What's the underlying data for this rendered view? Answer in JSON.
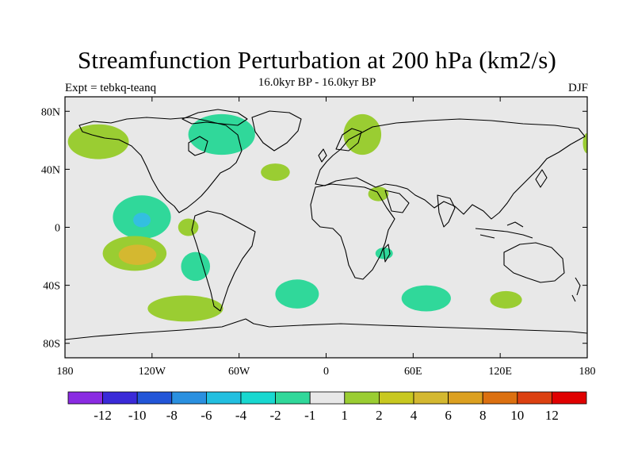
{
  "title": "Streamfunction Perturbation at 200 hPa (km2/s)",
  "subtitle": "16.0kyr BP - 16.0kyr BP",
  "left_label": "Expt = tebkq-teanq",
  "right_label": "DJF",
  "colors": {
    "land_fill": "#e8e8e8",
    "coastline": "#000000",
    "light_green": "#9acd32",
    "teal": "#30d89a",
    "cyan": "#33bfe0",
    "olive_orange": "#d4b830"
  },
  "map": {
    "projection": "cylindrical-equidistant",
    "lon_range": [
      -180,
      180
    ],
    "lat_range": [
      -90,
      90
    ],
    "lon_ticks": [
      "180",
      "120W",
      "60W",
      "0",
      "60E",
      "120E",
      "180"
    ],
    "lat_ticks": [
      "80N",
      "40N",
      "0",
      "40S",
      "80S"
    ]
  },
  "colorbar": {
    "colors": [
      "#8a2be2",
      "#3a2ad8",
      "#2255d8",
      "#2a90e0",
      "#22bfe0",
      "#18d8d0",
      "#30d89a",
      "#e8e8e8",
      "#9acd32",
      "#c8c820",
      "#d4b830",
      "#dca020",
      "#dc7010",
      "#dc4010",
      "#e00000"
    ],
    "labels": [
      "-12",
      "-10",
      "-8",
      "-6",
      "-4",
      "-2",
      "-1",
      "1",
      "2",
      "4",
      "6",
      "8",
      "10",
      "12"
    ]
  },
  "anomalies": [
    {
      "lon": -157,
      "lat": 59,
      "rx_deg": 21,
      "ry_deg": 12,
      "level": "2"
    },
    {
      "lon": -72,
      "lat": 64,
      "rx_deg": 23,
      "ry_deg": 14,
      "level": "-1"
    },
    {
      "lon": 25,
      "lat": 64,
      "rx_deg": 13,
      "ry_deg": 14,
      "level": "2"
    },
    {
      "lon": 180,
      "lat": 58,
      "rx_deg": 3,
      "ry_deg": 7,
      "level": "2"
    },
    {
      "lon": -35,
      "lat": 38,
      "rx_deg": 10,
      "ry_deg": 6,
      "level": "2"
    },
    {
      "lon": 36,
      "lat": 23,
      "rx_deg": 7,
      "ry_deg": 5,
      "level": "2"
    },
    {
      "lon": -127,
      "lat": 7,
      "rx_deg": 20,
      "ry_deg": 15,
      "level": "-1"
    },
    {
      "lon": -127,
      "lat": 5,
      "rx_deg": 6,
      "ry_deg": 5,
      "level": "-2"
    },
    {
      "lon": -95,
      "lat": 0,
      "rx_deg": 7,
      "ry_deg": 6,
      "level": "2"
    },
    {
      "lon": -132,
      "lat": -18,
      "rx_deg": 22,
      "ry_deg": 12,
      "level": "2"
    },
    {
      "lon": -130,
      "lat": -19,
      "rx_deg": 13,
      "ry_deg": 7,
      "level": "4"
    },
    {
      "lon": -90,
      "lat": -27,
      "rx_deg": 10,
      "ry_deg": 10,
      "level": "-1"
    },
    {
      "lon": 40,
      "lat": -18,
      "rx_deg": 6,
      "ry_deg": 4,
      "level": "-1"
    },
    {
      "lon": -20,
      "lat": -46,
      "rx_deg": 15,
      "ry_deg": 10,
      "level": "-1"
    },
    {
      "lon": 69,
      "lat": -49,
      "rx_deg": 17,
      "ry_deg": 9,
      "level": "-1"
    },
    {
      "lon": 124,
      "lat": -50,
      "rx_deg": 11,
      "ry_deg": 6,
      "level": "2"
    },
    {
      "lon": -97,
      "lat": -56,
      "rx_deg": 26,
      "ry_deg": 9,
      "level": "2"
    }
  ]
}
